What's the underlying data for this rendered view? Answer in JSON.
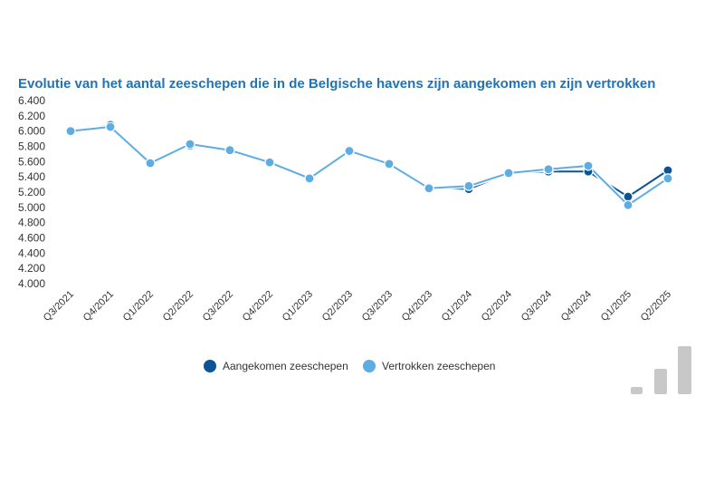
{
  "chart_data": {
    "type": "line",
    "title": "Evolutie van het aantal zeeschepen die in de Belgische havens zijn aangekomen en zijn vertrokken",
    "xlabel": "",
    "ylabel": "",
    "categories": [
      "Q3/2021",
      "Q4/2021",
      "Q1/2022",
      "Q2/2022",
      "Q3/2022",
      "Q4/2022",
      "Q1/2023",
      "Q2/2023",
      "Q3/2023",
      "Q4/2023",
      "Q1/2024",
      "Q2/2024",
      "Q3/2024",
      "Q4/2024",
      "Q1/2025",
      "Q2/2025"
    ],
    "series": [
      {
        "name": "Aangekomen zeeschepen",
        "color": "#0b5394",
        "values": [
          5990,
          6080,
          5570,
          5810,
          5750,
          5580,
          5380,
          5730,
          5560,
          5260,
          5240,
          5450,
          5470,
          5470,
          5140,
          5485
        ]
      },
      {
        "name": "Vertrokken zeeschepen",
        "color": "#5dade2",
        "values": [
          6000,
          6055,
          5580,
          5830,
          5750,
          5590,
          5380,
          5740,
          5570,
          5250,
          5280,
          5450,
          5500,
          5545,
          5030,
          5380
        ]
      }
    ],
    "ylim": [
      4000,
      6400
    ],
    "yticks": [
      "6.400",
      "6.200",
      "6.000",
      "5.800",
      "5.600",
      "5.400",
      "5.200",
      "5.000",
      "4.800",
      "4.600",
      "4.400",
      "4.200",
      "4.000"
    ],
    "grid": false,
    "legend_position": "bottom"
  },
  "decor": {
    "icon": "bar-chart-icon",
    "color": "#c8c8c8"
  }
}
